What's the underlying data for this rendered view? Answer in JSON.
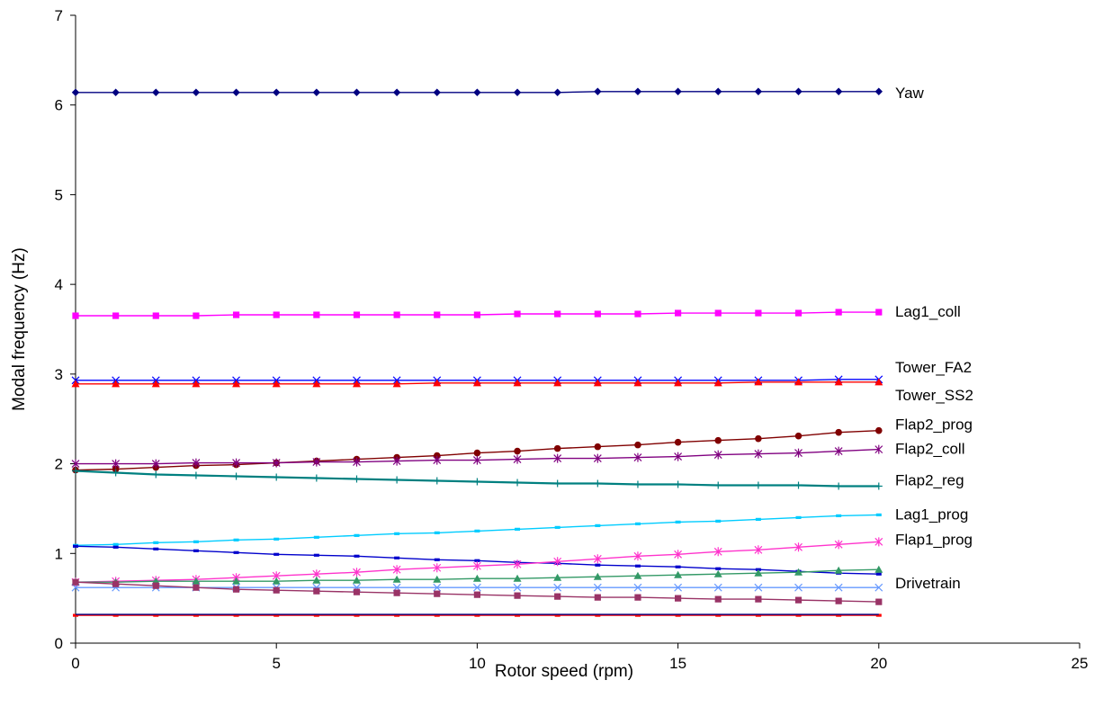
{
  "chart_data": {
    "type": "line",
    "xlabel": "Rotor speed (rpm)",
    "ylabel": "Modal frequency (Hz)",
    "xlim": [
      0,
      25
    ],
    "ylim": [
      0,
      7
    ],
    "xticks": [
      0,
      5,
      10,
      15,
      20,
      25
    ],
    "yticks": [
      0,
      1,
      2,
      3,
      4,
      5,
      6,
      7
    ],
    "grid": false,
    "legend": "labels at right end of lines",
    "x": [
      0,
      1,
      2,
      3,
      4,
      5,
      6,
      7,
      8,
      9,
      10,
      11,
      12,
      13,
      14,
      15,
      16,
      17,
      18,
      19,
      20
    ],
    "series": [
      {
        "name": "Yaw",
        "color": "#000080",
        "marker": "diamond",
        "values": [
          6.14,
          6.14,
          6.14,
          6.14,
          6.14,
          6.14,
          6.14,
          6.14,
          6.14,
          6.14,
          6.14,
          6.14,
          6.14,
          6.15,
          6.15,
          6.15,
          6.15,
          6.15,
          6.15,
          6.15,
          6.15
        ]
      },
      {
        "name": "Lag1_coll",
        "color": "#ff00ff",
        "marker": "square",
        "values": [
          3.65,
          3.65,
          3.65,
          3.65,
          3.66,
          3.66,
          3.66,
          3.66,
          3.66,
          3.66,
          3.66,
          3.67,
          3.67,
          3.67,
          3.67,
          3.68,
          3.68,
          3.68,
          3.68,
          3.69,
          3.69
        ]
      },
      {
        "name": "Tower_FA2",
        "color": "#0000ff",
        "marker": "x",
        "values": [
          2.93,
          2.93,
          2.93,
          2.93,
          2.93,
          2.93,
          2.93,
          2.93,
          2.93,
          2.93,
          2.93,
          2.93,
          2.93,
          2.93,
          2.93,
          2.93,
          2.93,
          2.93,
          2.93,
          2.94,
          2.94
        ]
      },
      {
        "name": "Tower_SS2",
        "color": "#ff0000",
        "marker": "triangle",
        "values": [
          2.89,
          2.89,
          2.89,
          2.89,
          2.89,
          2.89,
          2.89,
          2.89,
          2.89,
          2.9,
          2.9,
          2.9,
          2.9,
          2.9,
          2.9,
          2.9,
          2.9,
          2.91,
          2.91,
          2.91,
          2.91
        ]
      },
      {
        "name": "Flap2_prog",
        "color": "#800000",
        "marker": "circle",
        "values": [
          1.93,
          1.94,
          1.96,
          1.98,
          1.99,
          2.01,
          2.03,
          2.05,
          2.07,
          2.09,
          2.12,
          2.14,
          2.17,
          2.19,
          2.21,
          2.24,
          2.26,
          2.28,
          2.31,
          2.35,
          2.37
        ]
      },
      {
        "name": "Flap2_coll",
        "color": "#800080",
        "marker": "star",
        "values": [
          2.0,
          2.0,
          2.0,
          2.01,
          2.01,
          2.01,
          2.02,
          2.02,
          2.03,
          2.04,
          2.04,
          2.05,
          2.06,
          2.06,
          2.07,
          2.08,
          2.1,
          2.11,
          2.12,
          2.14,
          2.16
        ]
      },
      {
        "name": "Flap2_reg",
        "color": "#008080",
        "marker": "plus",
        "values": [
          1.92,
          1.9,
          1.88,
          1.87,
          1.86,
          1.85,
          1.84,
          1.83,
          1.82,
          1.81,
          1.8,
          1.79,
          1.78,
          1.78,
          1.77,
          1.77,
          1.76,
          1.76,
          1.76,
          1.75,
          1.75
        ]
      },
      {
        "name": "Lag1_prog",
        "color": "#00ccff",
        "marker": "dash",
        "values": [
          1.09,
          1.1,
          1.12,
          1.13,
          1.15,
          1.16,
          1.18,
          1.2,
          1.22,
          1.23,
          1.25,
          1.27,
          1.29,
          1.31,
          1.33,
          1.35,
          1.36,
          1.38,
          1.4,
          1.42,
          1.43
        ]
      },
      {
        "name": "",
        "color": "#0000cc",
        "marker": "dash",
        "values": [
          1.08,
          1.07,
          1.05,
          1.03,
          1.01,
          0.99,
          0.98,
          0.97,
          0.95,
          0.93,
          0.92,
          0.9,
          0.89,
          0.87,
          0.86,
          0.85,
          0.83,
          0.82,
          0.8,
          0.78,
          0.77
        ]
      },
      {
        "name": "Flap1_prog",
        "color": "#ff33cc",
        "marker": "star",
        "values": [
          0.68,
          0.69,
          0.7,
          0.71,
          0.73,
          0.75,
          0.77,
          0.79,
          0.82,
          0.84,
          0.86,
          0.88,
          0.91,
          0.94,
          0.97,
          0.99,
          1.02,
          1.04,
          1.07,
          1.1,
          1.13
        ]
      },
      {
        "name": "Drivetrain",
        "color": "#339966",
        "marker": "triangle",
        "values": [
          0.68,
          0.68,
          0.69,
          0.69,
          0.69,
          0.69,
          0.7,
          0.7,
          0.71,
          0.71,
          0.72,
          0.72,
          0.73,
          0.74,
          0.75,
          0.76,
          0.77,
          0.78,
          0.79,
          0.81,
          0.82
        ]
      },
      {
        "name": "",
        "color": "#6699ff",
        "marker": "x",
        "values": [
          0.62,
          0.62,
          0.62,
          0.62,
          0.62,
          0.62,
          0.62,
          0.62,
          0.62,
          0.62,
          0.62,
          0.62,
          0.62,
          0.62,
          0.62,
          0.62,
          0.62,
          0.62,
          0.62,
          0.62,
          0.62
        ]
      },
      {
        "name": "",
        "color": "#993366",
        "marker": "square",
        "values": [
          0.68,
          0.66,
          0.64,
          0.62,
          0.6,
          0.59,
          0.58,
          0.57,
          0.56,
          0.55,
          0.54,
          0.53,
          0.52,
          0.51,
          0.51,
          0.5,
          0.49,
          0.49,
          0.48,
          0.47,
          0.46
        ]
      },
      {
        "name": "",
        "color": "#ff0000",
        "marker": "dash",
        "values": [
          0.31,
          0.31,
          0.31,
          0.31,
          0.31,
          0.31,
          0.31,
          0.31,
          0.31,
          0.31,
          0.31,
          0.31,
          0.31,
          0.31,
          0.31,
          0.31,
          0.31,
          0.31,
          0.31,
          0.31,
          0.31
        ]
      },
      {
        "name": "",
        "color": "#000080",
        "marker": "none",
        "values": [
          0.32,
          0.32,
          0.32,
          0.32,
          0.32,
          0.32,
          0.32,
          0.32,
          0.32,
          0.32,
          0.32,
          0.32,
          0.32,
          0.32,
          0.32,
          0.32,
          0.32,
          0.32,
          0.32,
          0.32,
          0.32
        ]
      }
    ],
    "series_label_offsets": {
      "Yaw": 6.14,
      "Lag1_coll": 3.7,
      "Tower_FA2": 3.08,
      "Tower_SS2": 2.77,
      "Flap2_prog": 2.44,
      "Flap2_coll": 2.17,
      "Flap2_reg": 1.82,
      "Lag1_prog": 1.44,
      "Flap1_prog": 1.16,
      "Drivetrain": 0.67
    }
  }
}
